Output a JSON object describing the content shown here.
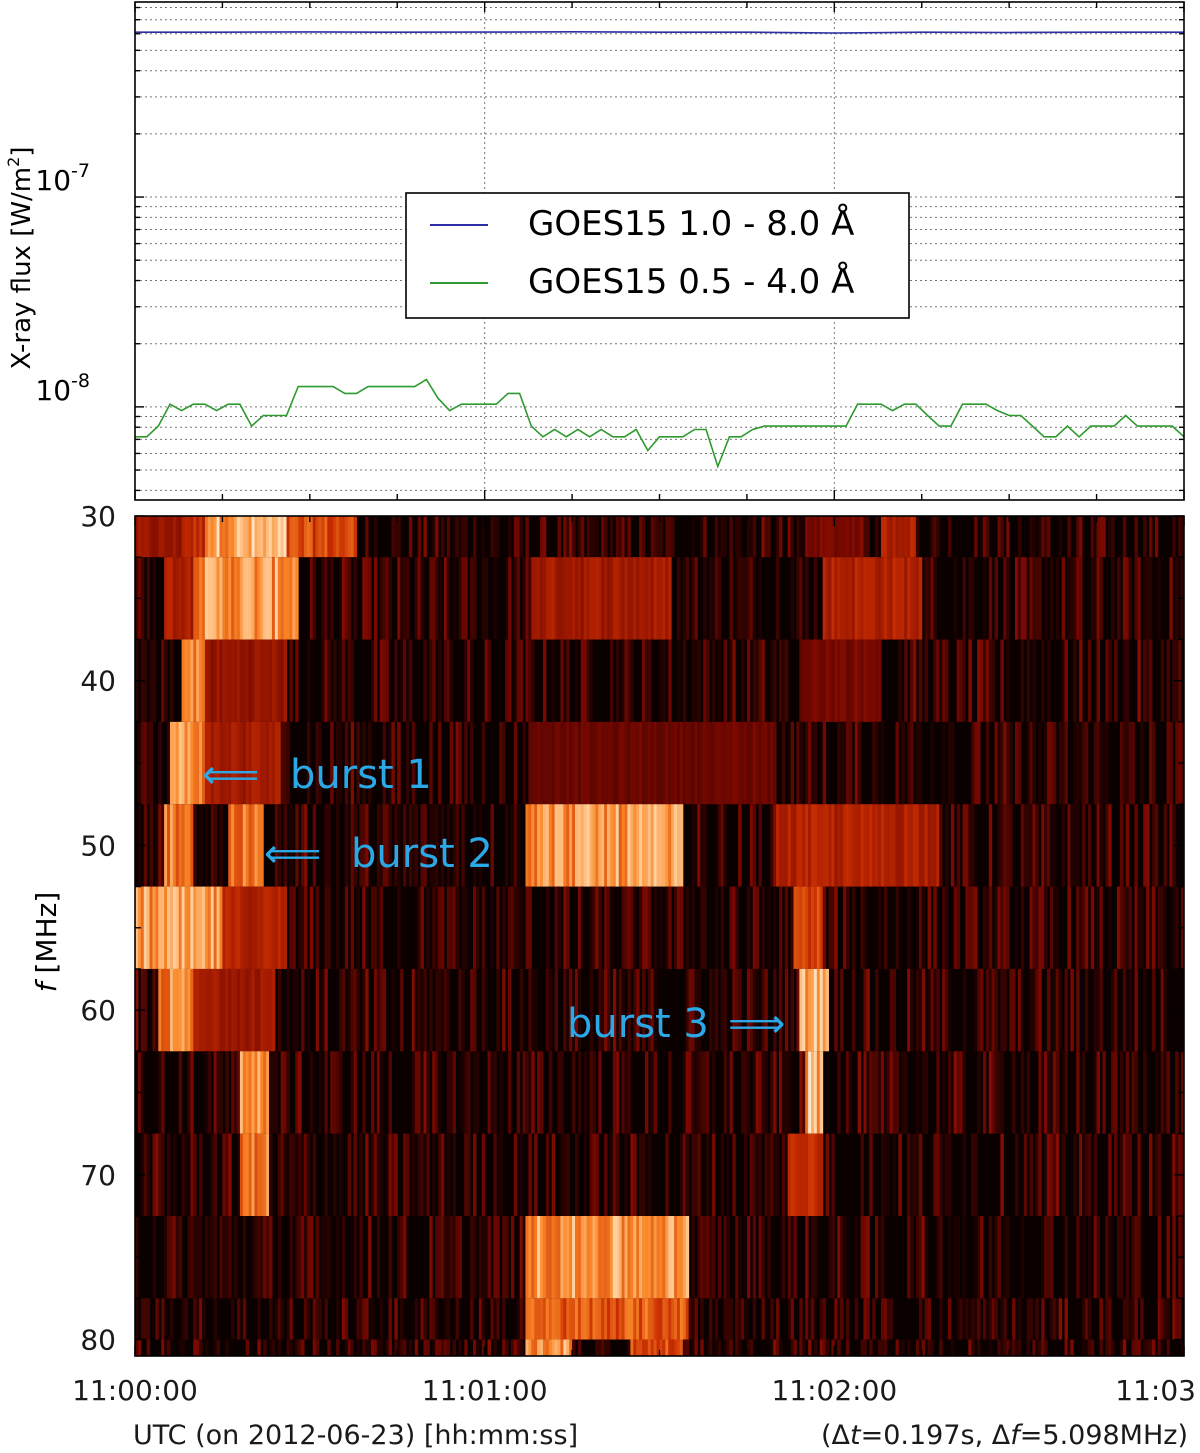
{
  "chart_data": [
    {
      "type": "line",
      "ylabel": "X-ray flux [W/m",
      "ylabel_sup": "2",
      "ylabel_end": "]",
      "yscale": "log",
      "ylim": [
        3.6e-09,
        8.5e-07
      ],
      "yticks": [
        {
          "value": 1e-07,
          "base": "10",
          "exp": "-7"
        },
        {
          "value": 1e-08,
          "base": "10",
          "exp": "-8"
        }
      ],
      "xlim": [
        0,
        180
      ],
      "grid": true,
      "legend": {
        "location": "upper-center",
        "entries": [
          {
            "label": "GOES15 1.0 - 8.0 Å",
            "color": "#2b2fa3"
          },
          {
            "label": "GOES15 0.5 - 4.0 Å",
            "color": "#2f9a2f"
          }
        ]
      },
      "series": [
        {
          "name": "GOES15 1.0 - 8.0 Å",
          "color": "#2b2fa3",
          "x": [
            0,
            15,
            30,
            45,
            60,
            75,
            90,
            105,
            120,
            135,
            150,
            165,
            180
          ],
          "y": [
            6.1e-07,
            6.1e-07,
            6.12e-07,
            6.1e-07,
            6.11e-07,
            6.13e-07,
            6.1e-07,
            6.1e-07,
            6.05e-07,
            6.1e-07,
            6.08e-07,
            6.1e-07,
            6.1e-07
          ]
        },
        {
          "name": "GOES15 0.5 - 4.0 Å",
          "color": "#2f9a2f",
          "x": [
            0,
            2,
            4,
            6,
            8,
            10,
            12,
            14,
            16,
            18,
            20,
            22,
            24,
            26,
            28,
            30,
            32,
            34,
            36,
            38,
            40,
            42,
            44,
            46,
            48,
            50,
            52,
            54,
            56,
            58,
            60,
            62,
            64,
            66,
            68,
            70,
            72,
            74,
            76,
            78,
            80,
            82,
            84,
            86,
            88,
            90,
            92,
            94,
            96,
            98,
            100,
            102,
            104,
            106,
            108,
            110,
            112,
            114,
            116,
            118,
            120,
            122,
            124,
            126,
            128,
            130,
            132,
            134,
            136,
            138,
            140,
            142,
            144,
            146,
            148,
            150,
            152,
            154,
            156,
            158,
            160,
            162,
            164,
            166,
            168,
            170,
            172,
            174,
            176,
            178,
            180
          ],
          "y": [
            7.2e-09,
            7.2e-09,
            8.1e-09,
            1.03e-08,
            9.6e-09,
            1.03e-08,
            1.03e-08,
            9.6e-09,
            1.03e-08,
            1.03e-08,
            8.1e-09,
            9.1e-09,
            9.1e-09,
            9.1e-09,
            1.25e-08,
            1.25e-08,
            1.25e-08,
            1.25e-08,
            1.16e-08,
            1.16e-08,
            1.25e-08,
            1.25e-08,
            1.25e-08,
            1.25e-08,
            1.25e-08,
            1.35e-08,
            1.1e-08,
            9.6e-09,
            1.03e-08,
            1.03e-08,
            1.03e-08,
            1.03e-08,
            1.16e-08,
            1.16e-08,
            8.1e-09,
            7.2e-09,
            7.8e-09,
            7.2e-09,
            7.8e-09,
            7.2e-09,
            7.8e-09,
            7.2e-09,
            7.2e-09,
            7.8e-09,
            6.2e-09,
            7.2e-09,
            7.2e-09,
            7.2e-09,
            7.8e-09,
            7.8e-09,
            5.2e-09,
            7.2e-09,
            7.2e-09,
            7.8e-09,
            8.1e-09,
            8.1e-09,
            8.1e-09,
            8.1e-09,
            8.1e-09,
            8.1e-09,
            8.1e-09,
            8.1e-09,
            1.03e-08,
            1.03e-08,
            1.03e-08,
            9.6e-09,
            1.03e-08,
            1.03e-08,
            9.1e-09,
            8.1e-09,
            8.1e-09,
            1.03e-08,
            1.03e-08,
            1.03e-08,
            9.6e-09,
            9.1e-09,
            9.1e-09,
            8.1e-09,
            7.2e-09,
            7.2e-09,
            8.1e-09,
            7.2e-09,
            8.1e-09,
            8.1e-09,
            8.1e-09,
            9.1e-09,
            8.1e-09,
            8.1e-09,
            8.1e-09,
            8.1e-09,
            7.2e-09
          ]
        }
      ]
    },
    {
      "type": "heatmap",
      "xlabel": "UTC (on 2012-06-23) [hh:mm:ss]",
      "ylabel_italic": "f",
      "ylabel": " [MHz]",
      "xlim": [
        0,
        180
      ],
      "xticks": [
        {
          "value": 0,
          "label": "11:00:00"
        },
        {
          "value": 60,
          "label": "11:01:00"
        },
        {
          "value": 120,
          "label": "11:02:00"
        },
        {
          "value": 180,
          "label": "11:03"
        }
      ],
      "ylim": [
        30,
        81
      ],
      "yticks": [
        30,
        40,
        50,
        60,
        70,
        80
      ],
      "colormap": "black-red-yellow-white",
      "resolution": {
        "prefix": "(Δ",
        "dt_var": "t",
        "dt_val": "=0.197s, Δ",
        "df_var": "f",
        "df_val": "=5.098MHz)"
      },
      "bands_mhz": [
        [
          30,
          32.5
        ],
        [
          32.5,
          37.5
        ],
        [
          37.5,
          42.5
        ],
        [
          42.5,
          47.5
        ],
        [
          47.5,
          52.5
        ],
        [
          52.5,
          57.5
        ],
        [
          57.5,
          62.5
        ],
        [
          62.5,
          67.5
        ],
        [
          67.5,
          72.5
        ],
        [
          72.5,
          77.5
        ],
        [
          77.5,
          80
        ],
        [
          80,
          81
        ]
      ],
      "features": [
        {
          "band": 0,
          "t0": 0,
          "t1": 8,
          "level": 0.45
        },
        {
          "band": 0,
          "t0": 8,
          "t1": 12,
          "level": 0.6
        },
        {
          "band": 0,
          "t0": 12,
          "t1": 26,
          "level": 0.95
        },
        {
          "band": 0,
          "t0": 26,
          "t1": 38,
          "level": 0.7
        },
        {
          "band": 0,
          "t0": 115,
          "t1": 125,
          "level": 0.35
        },
        {
          "band": 0,
          "t0": 128,
          "t1": 134,
          "level": 0.55
        },
        {
          "band": 1,
          "t0": 5,
          "t1": 10,
          "level": 0.55
        },
        {
          "band": 1,
          "t0": 10,
          "t1": 28,
          "level": 0.9
        },
        {
          "band": 1,
          "t0": 68,
          "t1": 92,
          "level": 0.5
        },
        {
          "band": 1,
          "t0": 118,
          "t1": 135,
          "level": 0.55
        },
        {
          "band": 2,
          "t0": 8,
          "t1": 12,
          "level": 0.85
        },
        {
          "band": 2,
          "t0": 12,
          "t1": 26,
          "level": 0.45
        },
        {
          "band": 2,
          "t0": 115,
          "t1": 128,
          "level": 0.35
        },
        {
          "band": 3,
          "t0": 6,
          "t1": 12,
          "level": 0.9
        },
        {
          "band": 3,
          "t0": 12,
          "t1": 25,
          "level": 0.5
        },
        {
          "band": 3,
          "t0": 68,
          "t1": 110,
          "level": 0.3
        },
        {
          "band": 4,
          "t0": 5,
          "t1": 10,
          "level": 0.85
        },
        {
          "band": 4,
          "t0": 16,
          "t1": 22,
          "level": 0.8
        },
        {
          "band": 4,
          "t0": 67,
          "t1": 94,
          "level": 0.9
        },
        {
          "band": 4,
          "t0": 110,
          "t1": 138,
          "level": 0.55
        },
        {
          "band": 5,
          "t0": 0,
          "t1": 15,
          "level": 0.9
        },
        {
          "band": 5,
          "t0": 15,
          "t1": 26,
          "level": 0.55
        },
        {
          "band": 5,
          "t0": 113,
          "t1": 118,
          "level": 0.7
        },
        {
          "band": 6,
          "t0": 4,
          "t1": 10,
          "level": 0.85
        },
        {
          "band": 6,
          "t0": 10,
          "t1": 24,
          "level": 0.5
        },
        {
          "band": 6,
          "t0": 114,
          "t1": 119,
          "level": 0.95
        },
        {
          "band": 7,
          "t0": 18,
          "t1": 23,
          "level": 0.9
        },
        {
          "band": 7,
          "t0": 115,
          "t1": 118,
          "level": 0.95
        },
        {
          "band": 8,
          "t0": 18,
          "t1": 23,
          "level": 0.85
        },
        {
          "band": 8,
          "t0": 112,
          "t1": 118,
          "level": 0.6
        },
        {
          "band": 9,
          "t0": 67,
          "t1": 95,
          "level": 0.9
        },
        {
          "band": 10,
          "t0": 67,
          "t1": 95,
          "level": 0.75
        },
        {
          "band": 11,
          "t0": 67,
          "t1": 75,
          "level": 0.9
        },
        {
          "band": 11,
          "t0": 85,
          "t1": 94,
          "level": 0.7
        }
      ],
      "annotations": [
        {
          "text": "burst 1",
          "arrow": "⟸",
          "time": 12,
          "freq": 45.5
        },
        {
          "text": "burst 2",
          "arrow": "⟸",
          "time": 23,
          "freq": 50.5
        },
        {
          "text": "burst 3",
          "arrow": "⟹",
          "time": 114,
          "freq": 60.7
        }
      ]
    }
  ]
}
